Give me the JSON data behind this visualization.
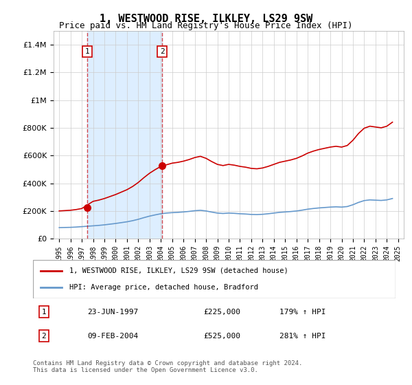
{
  "title": "1, WESTWOOD RISE, ILKLEY, LS29 9SW",
  "subtitle": "Price paid vs. HM Land Registry's House Price Index (HPI)",
  "sale1_date_num": 1997.48,
  "sale1_price": 225000,
  "sale1_label": "23-JUN-1997",
  "sale1_hpi_pct": "179% ↑ HPI",
  "sale2_date_num": 2004.11,
  "sale2_price": 525000,
  "sale2_label": "09-FEB-2004",
  "sale2_hpi_pct": "281% ↑ HPI",
  "legend1": "1, WESTWOOD RISE, ILKLEY, LS29 9SW (detached house)",
  "legend2": "HPI: Average price, detached house, Bradford",
  "footer": "Contains HM Land Registry data © Crown copyright and database right 2024.\nThis data is licensed under the Open Government Licence v3.0.",
  "red_color": "#cc0000",
  "blue_color": "#6699cc",
  "shaded_color": "#ddeeff",
  "ylim": [
    0,
    1500000
  ],
  "xlim_left": 1994.5,
  "xlim_right": 2025.5
}
